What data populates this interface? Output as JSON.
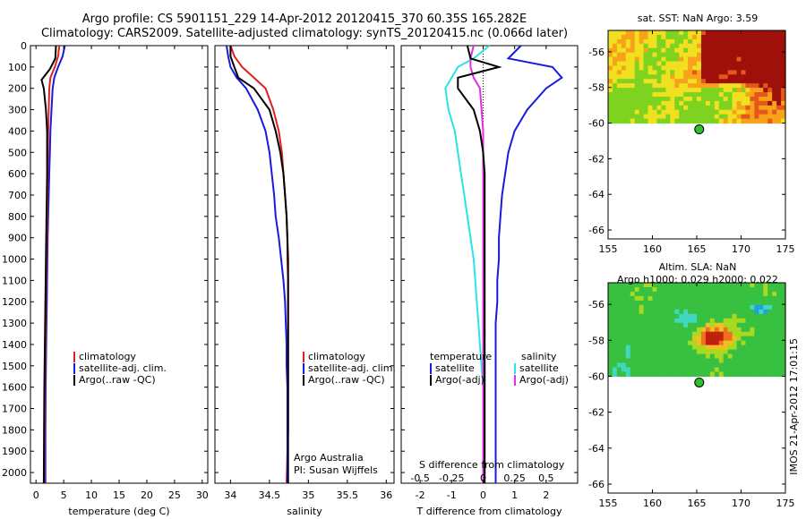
{
  "header": {
    "line1": "Argo profile: CS 5901151_229 14-Apr-2012 20120415_370 60.35S 165.282E",
    "line2": "Climatology: CARS2009. Satellite-adjusted climatology: synTS_20120415.nc (0.066d later)"
  },
  "colors": {
    "red": "#e02020",
    "blue": "#1a1adf",
    "black": "#000000",
    "cyan": "#29e4e4",
    "magenta": "#e030e0",
    "green": "#2cc22c"
  },
  "depth_ticks": [
    "0",
    "100",
    "200",
    "300",
    "400",
    "500",
    "600",
    "700",
    "800",
    "900",
    "1000",
    "1100",
    "1200",
    "1300",
    "1400",
    "1500",
    "1600",
    "1700",
    "1800",
    "1900",
    "2000"
  ],
  "panel1": {
    "xlabel": "temperature (deg C)",
    "xticks": [
      "0",
      "5",
      "10",
      "15",
      "20",
      "25",
      "30"
    ],
    "legend": [
      "climatology",
      "satellite-adj. clim.",
      "Argo(..raw -QC)"
    ]
  },
  "panel2": {
    "xlabel": "salinity",
    "xticks": [
      "34",
      "34.5",
      "35",
      "35.5",
      "36"
    ],
    "legend": [
      "climatology",
      "satellite-adj. clim.",
      "Argo(..raw -QC)"
    ],
    "note1": "Argo Australia",
    "note2": "PI: Susan Wijffels"
  },
  "panel3": {
    "legend_left_title": "temperature",
    "legend_right_title": "salinity",
    "legend_left": [
      "satellite",
      "Argo(-adj)"
    ],
    "legend_right": [
      "satellite",
      "Argo(-adj)"
    ],
    "top_axis_label": "S difference from climatology",
    "top_ticks": [
      "-0.5",
      "-0.25",
      "0",
      "0.25",
      "0.5"
    ],
    "bottom_ticks": [
      "-2",
      "-1",
      "0",
      "1",
      "2"
    ],
    "xlabel": "T difference from climatology"
  },
  "map1": {
    "title": "sat. SST: NaN Argo: 3.59",
    "yticks": [
      "-56",
      "-58",
      "-60",
      "-62",
      "-64",
      "-66"
    ],
    "xticks": [
      "155",
      "160",
      "165",
      "170",
      "175"
    ]
  },
  "map2": {
    "title1": "Altim. SLA: NaN",
    "title2": "Argo h1000: 0.029 h2000: 0.022",
    "yticks": [
      "-56",
      "-58",
      "-60",
      "-62",
      "-64",
      "-66"
    ],
    "xticks": [
      "155",
      "160",
      "165",
      "170",
      "175"
    ]
  },
  "footer_vertical": "IMOS 21-Apr-2012 17:01:15",
  "chart_data": [
    {
      "type": "line",
      "xlabel": "temperature (deg C)",
      "xlim": [
        -1,
        31
      ],
      "ylim": [
        2050,
        0
      ],
      "series": [
        {
          "name": "climatology",
          "x": [
            4.2,
            4.0,
            3.4,
            2.6,
            2.4,
            2.3,
            2.2,
            2.15,
            2.1,
            2.05,
            2.0,
            1.95,
            1.9,
            1.85,
            1.8,
            1.75,
            1.7,
            1.65,
            1.6,
            1.55,
            1.5
          ],
          "y": [
            0,
            50,
            100,
            150,
            200,
            300,
            400,
            500,
            600,
            700,
            800,
            900,
            1000,
            1100,
            1200,
            1300,
            1400,
            1500,
            1600,
            1800,
            2050
          ]
        },
        {
          "name": "satellite-adj. clim.",
          "x": [
            5.2,
            4.8,
            4.0,
            3.3,
            3.0,
            2.8,
            2.6,
            2.5,
            2.4,
            2.3,
            2.2,
            2.1,
            2.05,
            2.0,
            1.95,
            1.9,
            1.85,
            1.8,
            1.75,
            1.7,
            1.7
          ],
          "y": [
            0,
            50,
            100,
            150,
            200,
            300,
            400,
            500,
            600,
            700,
            800,
            900,
            1000,
            1100,
            1200,
            1300,
            1400,
            1500,
            1600,
            1800,
            2050
          ]
        },
        {
          "name": "Argo(..raw -QC)",
          "x": [
            3.6,
            3.5,
            2.5,
            1.0,
            1.4,
            1.8,
            2.0,
            2.0,
            2.0,
            1.95,
            1.9,
            1.85,
            1.8,
            1.75,
            1.7,
            1.65,
            1.6,
            1.55,
            1.5,
            1.45,
            1.4
          ],
          "y": [
            0,
            60,
            110,
            160,
            200,
            300,
            400,
            500,
            600,
            700,
            800,
            900,
            1000,
            1100,
            1200,
            1300,
            1400,
            1500,
            1600,
            1800,
            2050
          ]
        }
      ]
    },
    {
      "type": "line",
      "xlabel": "salinity",
      "xlim": [
        33.8,
        36.1
      ],
      "ylim": [
        2050,
        0
      ],
      "series": [
        {
          "name": "climatology",
          "x": [
            34.0,
            34.05,
            34.15,
            34.3,
            34.45,
            34.55,
            34.62,
            34.66,
            34.68,
            34.7,
            34.72,
            34.73,
            34.73,
            34.74,
            34.74,
            34.74,
            34.74,
            34.74,
            34.74,
            34.74,
            34.72
          ],
          "y": [
            0,
            50,
            100,
            150,
            200,
            300,
            400,
            500,
            600,
            700,
            800,
            900,
            1000,
            1100,
            1200,
            1300,
            1400,
            1500,
            1600,
            1800,
            2050
          ]
        },
        {
          "name": "satellite-adj. clim.",
          "x": [
            33.95,
            33.97,
            34.0,
            34.08,
            34.2,
            34.35,
            34.45,
            34.5,
            34.53,
            34.56,
            34.58,
            34.62,
            34.65,
            34.68,
            34.7,
            34.71,
            34.72,
            34.72,
            34.73,
            34.73,
            34.73
          ],
          "y": [
            0,
            50,
            100,
            150,
            200,
            300,
            400,
            500,
            600,
            700,
            800,
            900,
            1000,
            1100,
            1200,
            1300,
            1400,
            1500,
            1600,
            1800,
            2050
          ]
        },
        {
          "name": "Argo(..raw -QC)",
          "x": [
            34.0,
            34.0,
            34.05,
            34.1,
            34.3,
            34.5,
            34.58,
            34.64,
            34.68,
            34.7,
            34.72,
            34.73,
            34.74,
            34.74,
            34.74,
            34.74,
            34.74,
            34.74,
            34.74,
            34.74,
            34.74
          ],
          "y": [
            0,
            50,
            100,
            150,
            200,
            300,
            400,
            500,
            600,
            700,
            800,
            900,
            1000,
            1100,
            1200,
            1300,
            1400,
            1500,
            1600,
            1800,
            2050
          ]
        }
      ]
    },
    {
      "type": "line",
      "xlabel": "T difference from climatology",
      "top_axis": "S difference from climatology",
      "xlim": [
        -2.6,
        3.0
      ],
      "ylim": [
        2050,
        0
      ],
      "series": [
        {
          "name": "temperature satellite",
          "x": [
            1.2,
            0.8,
            2.2,
            2.5,
            2.0,
            1.4,
            1.0,
            0.8,
            0.7,
            0.6,
            0.55,
            0.5,
            0.5,
            0.45,
            0.45,
            0.4,
            0.4,
            0.4,
            0.4,
            0.4,
            0.4
          ],
          "y": [
            0,
            60,
            100,
            150,
            200,
            300,
            400,
            500,
            600,
            700,
            800,
            900,
            1000,
            1100,
            1200,
            1300,
            1400,
            1500,
            1600,
            1800,
            2050
          ]
        },
        {
          "name": "temperature Argo(-adj)",
          "x": [
            -0.5,
            -0.4,
            0.5,
            -0.8,
            -0.8,
            -0.3,
            -0.1,
            0.0,
            0.05,
            0.05,
            0.05,
            0.05,
            0.05,
            0.05,
            0.05,
            0.05,
            0.05,
            0.05,
            0.05,
            0.05,
            0.05
          ],
          "y": [
            0,
            60,
            100,
            150,
            200,
            300,
            400,
            500,
            600,
            700,
            800,
            900,
            1000,
            1100,
            1200,
            1300,
            1400,
            1500,
            1600,
            1800,
            2050
          ]
        },
        {
          "name": "salinity satellite",
          "x": [
            0.2,
            -0.3,
            -0.8,
            -1.0,
            -1.2,
            -1.1,
            -0.9,
            -0.8,
            -0.7,
            -0.6,
            -0.5,
            -0.4,
            -0.3,
            -0.25,
            -0.2,
            -0.15,
            -0.1,
            -0.05,
            0.0,
            0.0,
            0.0
          ],
          "y": [
            0,
            60,
            100,
            150,
            200,
            300,
            400,
            500,
            600,
            700,
            800,
            900,
            1000,
            1100,
            1200,
            1300,
            1400,
            1500,
            1600,
            1800,
            2050
          ]
        },
        {
          "name": "salinity Argo(-adj)",
          "x": [
            -0.3,
            -0.4,
            -0.4,
            -0.3,
            -0.1,
            -0.05,
            0.0,
            0.0,
            0.0,
            0.0,
            0.0,
            0.0,
            0.0,
            0.0,
            0.0,
            0.0,
            0.0,
            0.0,
            0.0,
            0.0,
            0.0
          ],
          "y": [
            0,
            60,
            100,
            150,
            200,
            300,
            400,
            500,
            600,
            700,
            800,
            900,
            1000,
            1100,
            1200,
            1300,
            1400,
            1500,
            1600,
            1800,
            2050
          ]
        }
      ]
    },
    {
      "type": "heatmap",
      "title": "sat. SST: NaN Argo: 3.59",
      "xlim": [
        155,
        175
      ],
      "ylim": [
        -66.5,
        -54.8
      ],
      "point": {
        "lon": 165.28,
        "lat": -60.35
      }
    },
    {
      "type": "heatmap",
      "title": "Altim. SLA: NaN",
      "xlim": [
        155,
        175
      ],
      "ylim": [
        -66.5,
        -54.8
      ],
      "point": {
        "lon": 165.28,
        "lat": -60.35
      }
    }
  ]
}
